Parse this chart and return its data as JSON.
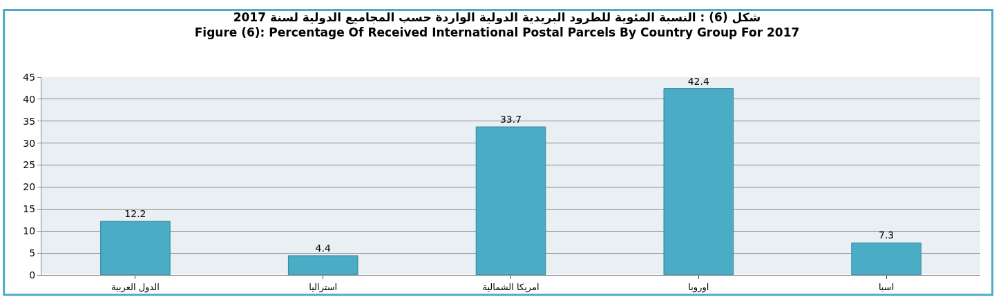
{
  "chart_data": {
    "type": "bar",
    "title": "شكل (6) : النسبة المئوية للطرود البريدية الدولية الواردة حسب المجاميع الدولية لسنة 2017",
    "subtitle": "Figure (6): Percentage Of Received International Postal Parcels By Country Group For 2017",
    "categories": [
      "الدول العربية",
      "استراليا",
      "امريكا الشمالية",
      "اوروبا",
      "اسيا"
    ],
    "values": [
      12.2,
      4.4,
      33.7,
      42.4,
      7.3
    ],
    "color": "#4bacc6",
    "ylim": [
      0,
      45
    ],
    "yticks": [
      0,
      5,
      10,
      15,
      20,
      25,
      30,
      35,
      40,
      45
    ],
    "grid": "y",
    "data_labels": true
  }
}
